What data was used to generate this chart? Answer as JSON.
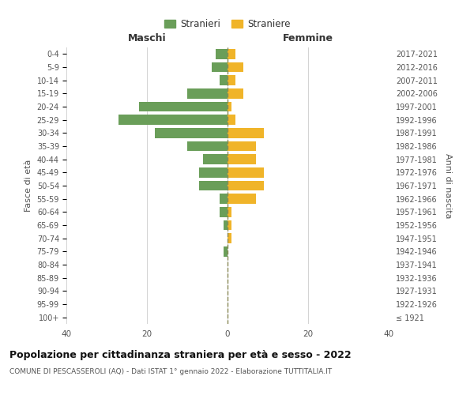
{
  "age_groups": [
    "100+",
    "95-99",
    "90-94",
    "85-89",
    "80-84",
    "75-79",
    "70-74",
    "65-69",
    "60-64",
    "55-59",
    "50-54",
    "45-49",
    "40-44",
    "35-39",
    "30-34",
    "25-29",
    "20-24",
    "15-19",
    "10-14",
    "5-9",
    "0-4"
  ],
  "birth_years": [
    "≤ 1921",
    "1922-1926",
    "1927-1931",
    "1932-1936",
    "1937-1941",
    "1942-1946",
    "1947-1951",
    "1952-1956",
    "1957-1961",
    "1962-1966",
    "1967-1971",
    "1972-1976",
    "1977-1981",
    "1982-1986",
    "1987-1991",
    "1992-1996",
    "1997-2001",
    "2002-2006",
    "2007-2011",
    "2012-2016",
    "2017-2021"
  ],
  "maschi_stranieri": [
    0,
    0,
    0,
    0,
    0,
    1,
    0,
    1,
    2,
    2,
    7,
    7,
    6,
    10,
    18,
    27,
    22,
    10,
    2,
    4,
    3
  ],
  "femmine_straniere": [
    0,
    0,
    0,
    0,
    0,
    0,
    1,
    1,
    1,
    7,
    9,
    9,
    7,
    7,
    9,
    2,
    1,
    4,
    2,
    4,
    2
  ],
  "maschi_color": "#6a9e59",
  "femmine_color": "#f0b429",
  "center_line_color": "#888855",
  "bg_color": "#ffffff",
  "grid_color": "#cccccc",
  "xlim": [
    -40,
    40
  ],
  "title": "Popolazione per cittadinanza straniera per età e sesso - 2022",
  "subtitle": "COMUNE DI PESCASSEROLI (AQ) - Dati ISTAT 1° gennaio 2022 - Elaborazione TUTTITALIA.IT",
  "xlabel_left": "Maschi",
  "xlabel_right": "Femmine",
  "ylabel_left": "Fasce di età",
  "ylabel_right": "Anni di nascita",
  "legend_maschi": "Stranieri",
  "legend_femmine": "Straniere",
  "xticks": [
    -40,
    -20,
    0,
    20,
    40
  ],
  "xtick_labels": [
    "40",
    "20",
    "0",
    "20",
    "40"
  ],
  "title_fontsize": 9,
  "subtitle_fontsize": 6.5
}
